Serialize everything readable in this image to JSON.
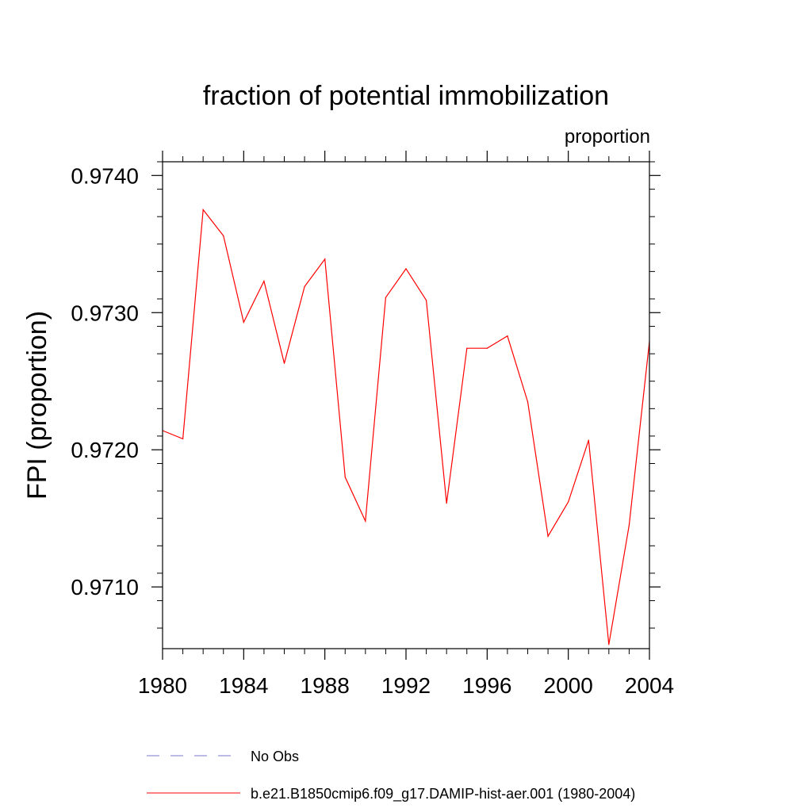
{
  "chart_data": {
    "type": "line",
    "title": "fraction of potential immobilization",
    "subtitle_right": "proportion",
    "ylabel": "FPI  (proportion)",
    "xlabel": "",
    "xlim": [
      1980,
      2004
    ],
    "ylim": [
      0.97055,
      0.9741
    ],
    "x_ticks": [
      1980,
      1984,
      1988,
      1992,
      1996,
      2000,
      2004
    ],
    "x_tick_labels": [
      "1980",
      "1984",
      "1988",
      "1992",
      "1996",
      "2000",
      "2004"
    ],
    "y_ticks": [
      0.971,
      0.972,
      0.973,
      0.974
    ],
    "y_tick_labels": [
      "0.9710",
      "0.9720",
      "0.9730",
      "0.9740"
    ],
    "grid": false,
    "legend_position": "bottom",
    "series": [
      {
        "name": "b.e21.B1850cmip6.f09_g17.DAMIP-hist-aer.001 (1980-2004)",
        "color": "#ff0000",
        "x": [
          1980,
          1981,
          1982,
          1983,
          1984,
          1985,
          1986,
          1987,
          1988,
          1989,
          1990,
          1991,
          1992,
          1993,
          1994,
          1995,
          1996,
          1997,
          1998,
          1999,
          2000,
          2001,
          2002,
          2003,
          2004
        ],
        "y": [
          0.97214,
          0.97208,
          0.97375,
          0.97356,
          0.97293,
          0.97323,
          0.97263,
          0.97319,
          0.97339,
          0.9718,
          0.97148,
          0.97311,
          0.97332,
          0.97309,
          0.97161,
          0.97274,
          0.97274,
          0.97283,
          0.97235,
          0.97137,
          0.97162,
          0.97207,
          0.97058,
          0.97145,
          0.97279
        ]
      }
    ],
    "legend": [
      {
        "label": "No Obs",
        "style": "dashed",
        "color": "#7777cc"
      },
      {
        "label": "b.e21.B1850cmip6.f09_g17.DAMIP-hist-aer.001 (1980-2004)",
        "style": "solid",
        "color": "#ff0000"
      }
    ]
  }
}
